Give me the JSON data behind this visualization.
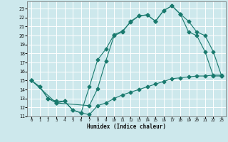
{
  "xlabel": "Humidex (Indice chaleur)",
  "background_color": "#cde8ec",
  "grid_color": "#ffffff",
  "line_color": "#1a7a6e",
  "xlim": [
    -0.5,
    23.5
  ],
  "ylim": [
    11,
    23.8
  ],
  "xticks": [
    0,
    1,
    2,
    3,
    4,
    5,
    6,
    7,
    8,
    9,
    10,
    11,
    12,
    13,
    14,
    15,
    16,
    17,
    18,
    19,
    20,
    21,
    22,
    23
  ],
  "yticks": [
    11,
    12,
    13,
    14,
    15,
    16,
    17,
    18,
    19,
    20,
    21,
    22,
    23
  ],
  "line1_x": [
    0,
    1,
    2,
    3,
    4,
    5,
    6,
    7,
    8,
    9,
    10,
    11,
    12,
    13,
    14,
    15,
    16,
    17,
    18,
    19,
    20,
    21,
    22,
    23
  ],
  "line1_y": [
    15,
    14.3,
    13,
    12.7,
    12.7,
    11.7,
    11.4,
    14.3,
    17.3,
    18.5,
    20.1,
    20.5,
    21.5,
    22.2,
    22.3,
    21.6,
    22.8,
    23.3,
    22.4,
    20.4,
    20.0,
    18.2,
    15.5,
    15.5
  ],
  "line2_x": [
    0,
    3,
    7,
    8,
    9,
    10,
    11,
    12,
    13,
    14,
    15,
    16,
    17,
    18,
    19,
    20,
    21,
    22,
    23
  ],
  "line2_y": [
    15,
    12.5,
    12.2,
    14.1,
    17.2,
    20.0,
    20.4,
    21.6,
    22.2,
    22.3,
    21.6,
    22.8,
    23.3,
    22.4,
    21.6,
    20.4,
    20.0,
    18.2,
    15.5
  ],
  "line3_x": [
    0,
    1,
    2,
    3,
    4,
    5,
    6,
    7,
    8,
    9,
    10,
    11,
    12,
    13,
    14,
    15,
    16,
    17,
    18,
    19,
    20,
    21,
    22,
    23
  ],
  "line3_y": [
    15,
    14.3,
    13,
    12.5,
    12.7,
    11.7,
    11.4,
    11.2,
    12.2,
    12.5,
    13.0,
    13.4,
    13.7,
    14.0,
    14.3,
    14.6,
    14.9,
    15.2,
    15.3,
    15.4,
    15.5,
    15.5,
    15.6,
    15.6
  ]
}
